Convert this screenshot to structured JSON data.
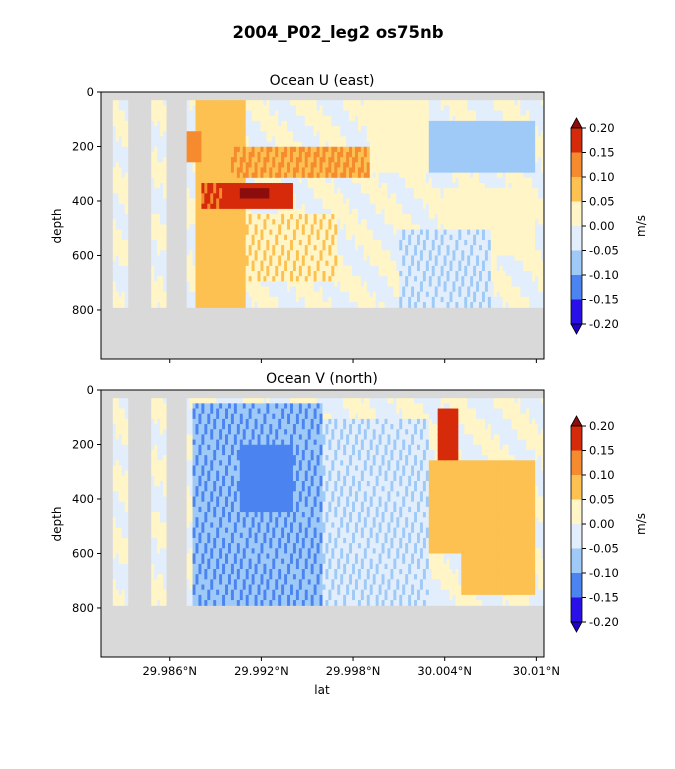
{
  "figure": {
    "title": "2004_P02_leg2 os75nb"
  },
  "chart_data": [
    {
      "type": "heatmap",
      "title": "Ocean U (east)",
      "xlabel": "",
      "ylabel": "depth",
      "yticks": [
        "0",
        "200",
        "400",
        "600",
        "800"
      ],
      "ylim": [
        980,
        0
      ],
      "xlim": [
        29.9815,
        30.0105
      ],
      "xtick_values": [
        29.986,
        29.992,
        29.998,
        30.004,
        30.01
      ],
      "xticks_labeled": false,
      "missing_color": "#d9d9d9",
      "colorbar": {
        "label": "m/s",
        "ticks": [
          "0.20",
          "0.15",
          "0.10",
          "0.05",
          "0.00",
          "-0.05",
          "-0.10",
          "-0.15",
          "-0.20"
        ],
        "levels": [
          0.2,
          0.15,
          0.1,
          0.05,
          0.0,
          -0.05,
          -0.1,
          -0.15,
          -0.2
        ],
        "colors": [
          "#d62b0a",
          "#f58a2f",
          "#fcc151",
          "#fff5c6",
          "#e2eefb",
          "#9fcaf7",
          "#4b84f0",
          "#2a10e8"
        ],
        "extend_colors": {
          "max": "#8b0d0d",
          "min": "#2200cc"
        }
      },
      "data_depth_limit": 790,
      "blank_columns": [
        [
          29.9815,
          29.9823
        ],
        [
          29.9832,
          29.9847
        ],
        [
          29.9857,
          29.9871
        ]
      ],
      "features": [
        {
          "lat": [
            29.9876,
            29.991
          ],
          "depth": [
            0,
            800
          ],
          "value": 0.08
        },
        {
          "lat": [
            29.986,
            29.988
          ],
          "depth": [
            150,
            250
          ],
          "value": 0.12
        },
        {
          "lat": [
            29.988,
            29.9895
          ],
          "depth": [
            340,
            420
          ],
          "value": 0.16
        },
        {
          "lat": [
            29.9895,
            29.994
          ],
          "depth": [
            340,
            420
          ],
          "value": 0.18
        },
        {
          "lat": [
            29.9905,
            29.9925
          ],
          "depth": [
            360,
            400
          ],
          "value": 0.22
        },
        {
          "lat": [
            29.99,
            29.999
          ],
          "depth": [
            200,
            320
          ],
          "value": 0.1
        },
        {
          "lat": [
            29.991,
            29.997
          ],
          "depth": [
            450,
            700
          ],
          "value": 0.04
        },
        {
          "lat": [
            29.999,
            30.003
          ],
          "depth": [
            0,
            300
          ],
          "value": 0.03
        },
        {
          "lat": [
            30.003,
            30.01
          ],
          "depth": [
            100,
            300
          ],
          "value": -0.08
        },
        {
          "lat": [
            30.004,
            30.01
          ],
          "depth": [
            350,
            600
          ],
          "value": 0.03
        },
        {
          "lat": [
            30.001,
            30.007
          ],
          "depth": [
            500,
            800
          ],
          "value": -0.04
        }
      ]
    },
    {
      "type": "heatmap",
      "title": "Ocean V (north)",
      "xlabel": "lat",
      "ylabel": "depth",
      "yticks": [
        "0",
        "200",
        "400",
        "600",
        "800"
      ],
      "ylim": [
        980,
        0
      ],
      "xlim": [
        29.9815,
        30.0105
      ],
      "xtick_values": [
        29.986,
        29.992,
        29.998,
        30.004,
        30.01
      ],
      "xticks": [
        "29.986°N",
        "29.992°N",
        "29.998°N",
        "30.004°N",
        "30.01°N"
      ],
      "missing_color": "#d9d9d9",
      "colorbar": {
        "label": "m/s",
        "ticks": [
          "0.20",
          "0.15",
          "0.10",
          "0.05",
          "0.00",
          "-0.05",
          "-0.10",
          "-0.15",
          "-0.20"
        ],
        "levels": [
          0.2,
          0.15,
          0.1,
          0.05,
          0.0,
          -0.05,
          -0.1,
          -0.15,
          -0.2
        ],
        "colors": [
          "#d62b0a",
          "#f58a2f",
          "#fcc151",
          "#fff5c6",
          "#e2eefb",
          "#9fcaf7",
          "#4b84f0",
          "#2a10e8"
        ],
        "extend_colors": {
          "max": "#8b0d0d",
          "min": "#2200cc"
        }
      },
      "data_depth_limit": 790,
      "blank_columns": [
        [
          29.9815,
          29.9823
        ],
        [
          29.9832,
          29.9847
        ],
        [
          29.9857,
          29.9871
        ]
      ],
      "features": [
        {
          "lat": [
            29.9875,
            29.996
          ],
          "depth": [
            50,
            800
          ],
          "value": -0.09
        },
        {
          "lat": [
            29.99,
            29.995
          ],
          "depth": [
            0,
            30
          ],
          "value": -0.18
        },
        {
          "lat": [
            29.9905,
            29.994
          ],
          "depth": [
            200,
            450
          ],
          "value": -0.13
        },
        {
          "lat": [
            29.9815,
            29.9823
          ],
          "depth": [
            250,
            700
          ],
          "value": -0.11
        },
        {
          "lat": [
            30.0035,
            30.0048
          ],
          "depth": [
            60,
            250
          ],
          "value": 0.17
        },
        {
          "lat": [
            30.003,
            30.01
          ],
          "depth": [
            250,
            600
          ],
          "value": 0.07
        },
        {
          "lat": [
            30.005,
            30.01
          ],
          "depth": [
            600,
            750
          ],
          "value": 0.08
        },
        {
          "lat": [
            29.996,
            30.003
          ],
          "depth": [
            100,
            800
          ],
          "value": -0.04
        }
      ]
    }
  ]
}
